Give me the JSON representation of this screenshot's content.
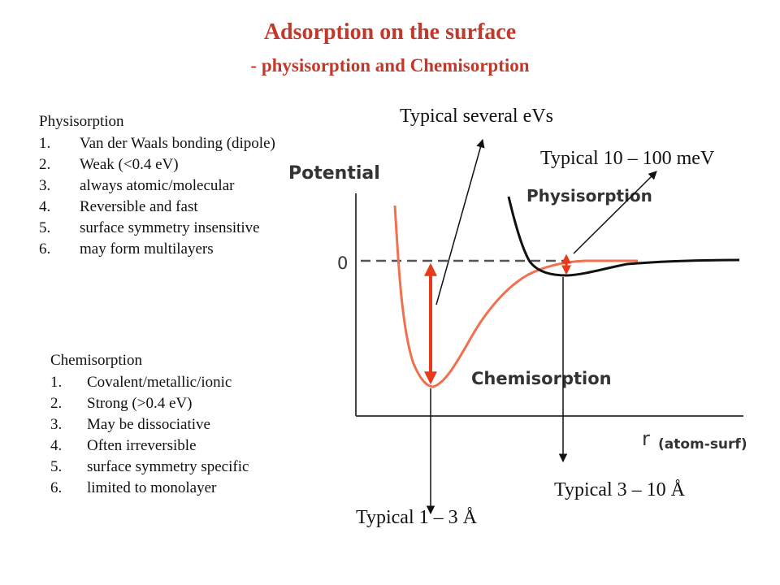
{
  "title": "Adsorption on the surface",
  "subtitle": "- physisorption and Chemisorption",
  "physisorption": {
    "heading": "Physisorption",
    "items": [
      {
        "num": "1.",
        "text": "Van der Waals bonding (dipole)"
      },
      {
        "num": "2.",
        "text": "Weak (<0.4 eV)"
      },
      {
        "num": "3.",
        "text": "always atomic/molecular"
      },
      {
        "num": "4.",
        "text": "Reversible and fast"
      },
      {
        "num": "5.",
        "text": "surface symmetry insensitive"
      },
      {
        "num": "6.",
        "text": "may form multilayers"
      }
    ]
  },
  "chemisorption": {
    "heading": "Chemisorption",
    "items": [
      {
        "num": "1.",
        "text": "Covalent/metallic/ionic"
      },
      {
        "num": "2.",
        "text": "Strong (>0.4 eV)"
      },
      {
        "num": "3.",
        "text": "May be dissociative"
      },
      {
        "num": "4.",
        "text": "Often irreversible"
      },
      {
        "num": "5.",
        "text": "surface symmetry specific"
      },
      {
        "num": "6.",
        "text": "limited to monolayer"
      }
    ]
  },
  "annotations": {
    "several_ev": "Typical several eVs",
    "mev": "Typical 10 – 100 meV",
    "dist_phys": "Typical 3 – 10 Å",
    "dist_chem": "Typical 1 – 3 Å"
  },
  "diagram": {
    "y_axis_label": "Potential",
    "zero_label": "0",
    "x_axis_label": "r",
    "x_axis_sub": "(atom-surf)",
    "physisorption_label": "Physisorption",
    "chemisorption_label": "Chemisorption"
  },
  "colors": {
    "title": "#c0392b",
    "chemisorption_curve": "#f07050",
    "physisorption_curve": "#111111",
    "energy_arrow": "#e83a1a"
  }
}
